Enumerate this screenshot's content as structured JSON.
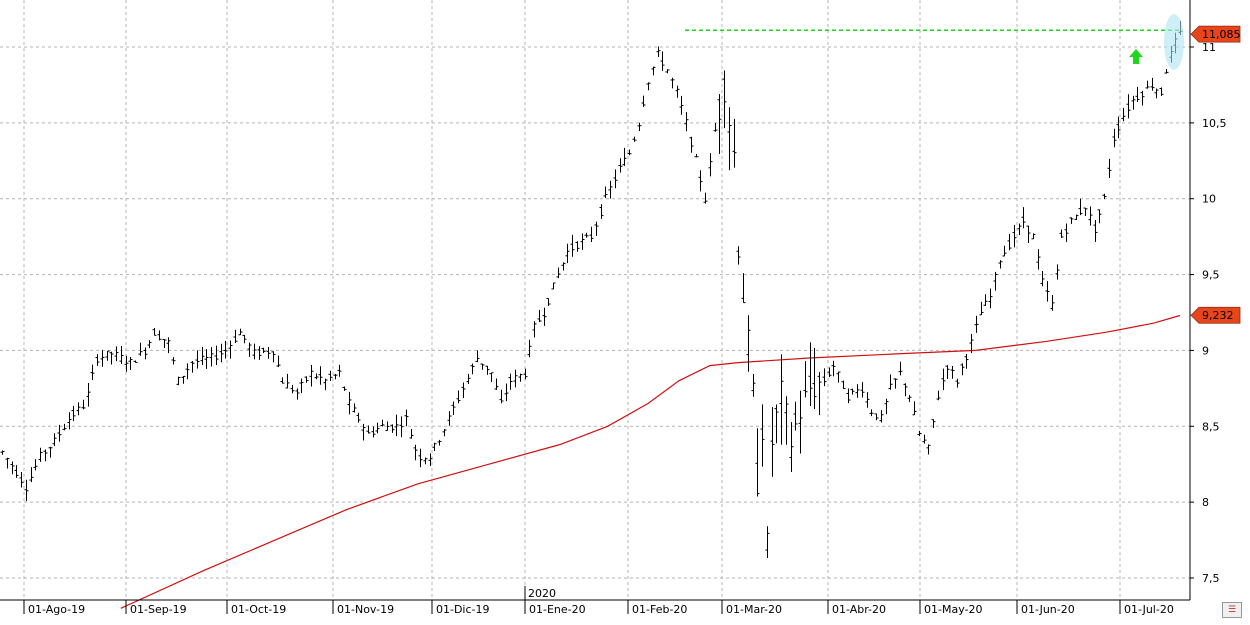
{
  "colors": {
    "background": "#ffffff",
    "grid": "#b4b4b4",
    "price_bars": "#000000",
    "moving_average": "#d01010",
    "resistance_line": "#1ed61e",
    "up_arrow": "#1ed61e",
    "highlight": "#aee4f2",
    "price_tag": "#e8461a"
  },
  "chart_data": {
    "type": "ohlc",
    "grid": true,
    "ylim": [
      7.35,
      11.35
    ],
    "y_ticks": [
      "7,5",
      "8",
      "8,5",
      "9",
      "9,5",
      "10",
      "10,5",
      "11"
    ],
    "y_tick_values": [
      7.5,
      8,
      8.5,
      9,
      9.5,
      10,
      10.5,
      11
    ],
    "x_ticks": [
      "01-Ago-19",
      "01-Sep-19",
      "01-Oct-19",
      "01-Nov-19",
      "01-Dic-19",
      "01-Ene-20",
      "01-Feb-20",
      "01-Mar-20",
      "01-Abr-20",
      "01-May-20",
      "01-Jun-20",
      "01-Jul-20"
    ],
    "year_marker": "2020",
    "last_price_label": "11,085",
    "last_price": 11.085,
    "ma_label": "9,232",
    "ma_value": 9.232,
    "resistance_level": 11.11,
    "price_path": [
      [
        0,
        8.33
      ],
      [
        6,
        8.2
      ],
      [
        10,
        8.1
      ],
      [
        16,
        8.3
      ],
      [
        22,
        8.4
      ],
      [
        28,
        8.55
      ],
      [
        35,
        8.65
      ],
      [
        40,
        8.95
      ],
      [
        46,
        8.98
      ],
      [
        54,
        8.92
      ],
      [
        60,
        9.0
      ],
      [
        64,
        9.12
      ],
      [
        70,
        9.05
      ],
      [
        74,
        8.8
      ],
      [
        80,
        8.92
      ],
      [
        88,
        8.95
      ],
      [
        94,
        9.0
      ],
      [
        100,
        9.12
      ],
      [
        106,
        8.98
      ],
      [
        114,
        9.0
      ],
      [
        118,
        8.8
      ],
      [
        124,
        8.72
      ],
      [
        130,
        8.85
      ],
      [
        136,
        8.8
      ],
      [
        142,
        8.85
      ],
      [
        146,
        8.65
      ],
      [
        150,
        8.55
      ],
      [
        154,
        8.45
      ],
      [
        160,
        8.5
      ],
      [
        166,
        8.5
      ],
      [
        170,
        8.55
      ],
      [
        175,
        8.3
      ],
      [
        180,
        8.3
      ],
      [
        184,
        8.42
      ],
      [
        188,
        8.55
      ],
      [
        194,
        8.75
      ],
      [
        200,
        8.95
      ],
      [
        206,
        8.85
      ],
      [
        210,
        8.65
      ],
      [
        214,
        8.8
      ],
      [
        220,
        8.85
      ],
      [
        224,
        9.15
      ],
      [
        228,
        9.25
      ],
      [
        234,
        9.5
      ],
      [
        238,
        9.65
      ],
      [
        242,
        9.7
      ],
      [
        248,
        9.75
      ],
      [
        254,
        10.0
      ],
      [
        260,
        10.2
      ],
      [
        264,
        10.3
      ],
      [
        268,
        10.5
      ],
      [
        272,
        10.78
      ],
      [
        276,
        10.95
      ],
      [
        280,
        10.85
      ],
      [
        284,
        10.7
      ],
      [
        288,
        10.5
      ],
      [
        292,
        10.25
      ],
      [
        296,
        10.0
      ],
      [
        300,
        10.45
      ],
      [
        304,
        10.75
      ],
      [
        308,
        10.3
      ],
      [
        310,
        9.7
      ],
      [
        313,
        9.2
      ],
      [
        316,
        8.7
      ],
      [
        318,
        8.15
      ],
      [
        320,
        8.5
      ],
      [
        322,
        7.7
      ],
      [
        324,
        8.4
      ],
      [
        328,
        8.7
      ],
      [
        332,
        8.4
      ],
      [
        336,
        8.6
      ],
      [
        340,
        8.75
      ],
      [
        346,
        8.8
      ],
      [
        350,
        8.9
      ],
      [
        356,
        8.7
      ],
      [
        362,
        8.75
      ],
      [
        366,
        8.6
      ],
      [
        370,
        8.55
      ],
      [
        374,
        8.75
      ],
      [
        378,
        8.85
      ],
      [
        382,
        8.7
      ],
      [
        386,
        8.45
      ],
      [
        390,
        8.35
      ],
      [
        394,
        8.7
      ],
      [
        398,
        8.9
      ],
      [
        402,
        8.8
      ],
      [
        408,
        9.05
      ],
      [
        412,
        9.25
      ],
      [
        416,
        9.35
      ],
      [
        420,
        9.6
      ],
      [
        426,
        9.75
      ],
      [
        430,
        9.85
      ],
      [
        434,
        9.75
      ],
      [
        438,
        9.45
      ],
      [
        442,
        9.3
      ],
      [
        446,
        9.75
      ],
      [
        450,
        9.85
      ],
      [
        456,
        9.95
      ],
      [
        460,
        9.8
      ],
      [
        464,
        10.0
      ],
      [
        468,
        10.4
      ],
      [
        472,
        10.55
      ],
      [
        476,
        10.65
      ],
      [
        480,
        10.7
      ],
      [
        484,
        10.75
      ],
      [
        488,
        10.7
      ],
      [
        490,
        10.85
      ],
      [
        493,
        11.0
      ],
      [
        496,
        11.085
      ]
    ],
    "ma_path": [
      [
        50,
        7.3
      ],
      [
        85,
        7.55
      ],
      [
        115,
        7.75
      ],
      [
        145,
        7.95
      ],
      [
        175,
        8.12
      ],
      [
        205,
        8.25
      ],
      [
        235,
        8.38
      ],
      [
        255,
        8.5
      ],
      [
        272,
        8.65
      ],
      [
        285,
        8.8
      ],
      [
        298,
        8.9
      ],
      [
        310,
        8.92
      ],
      [
        340,
        8.95
      ],
      [
        380,
        8.98
      ],
      [
        410,
        9.0
      ],
      [
        440,
        9.06
      ],
      [
        465,
        9.12
      ],
      [
        485,
        9.18
      ],
      [
        496,
        9.23
      ]
    ]
  },
  "toolbar": {
    "icon": "chart-settings-icon"
  }
}
